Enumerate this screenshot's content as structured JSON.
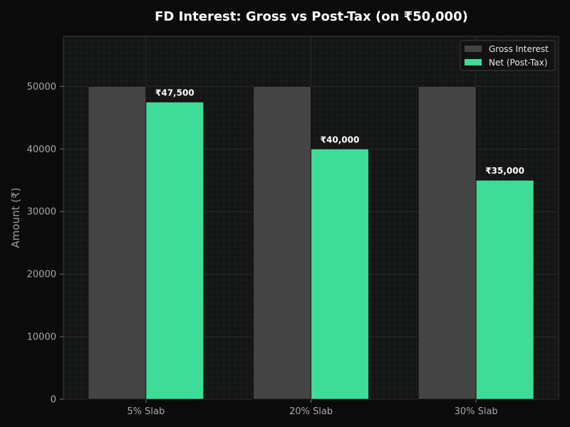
{
  "chart_data": {
    "type": "bar",
    "title": "FD Interest: Gross vs Post-Tax (on ₹50,000)",
    "xlabel": "",
    "ylabel": "Amount (₹)",
    "categories": [
      "5% Slab",
      "20% Slab",
      "30% Slab"
    ],
    "series": [
      {
        "name": "Gross Interest",
        "values": [
          50000,
          50000,
          50000
        ],
        "color": "#444444",
        "labels": [
          "",
          "",
          ""
        ]
      },
      {
        "name": "Net (Post-Tax)",
        "values": [
          47500,
          40000,
          35000
        ],
        "color": "#3ddc97",
        "labels": [
          "₹47,500",
          "₹40,000",
          "₹35,000"
        ]
      }
    ],
    "ylim": [
      0,
      58000
    ],
    "yticks": [
      0,
      10000,
      20000,
      30000,
      40000,
      50000
    ],
    "grid": true,
    "legend_position": "top-right",
    "background": "#0b0b0b",
    "plot_background": "#151716"
  }
}
